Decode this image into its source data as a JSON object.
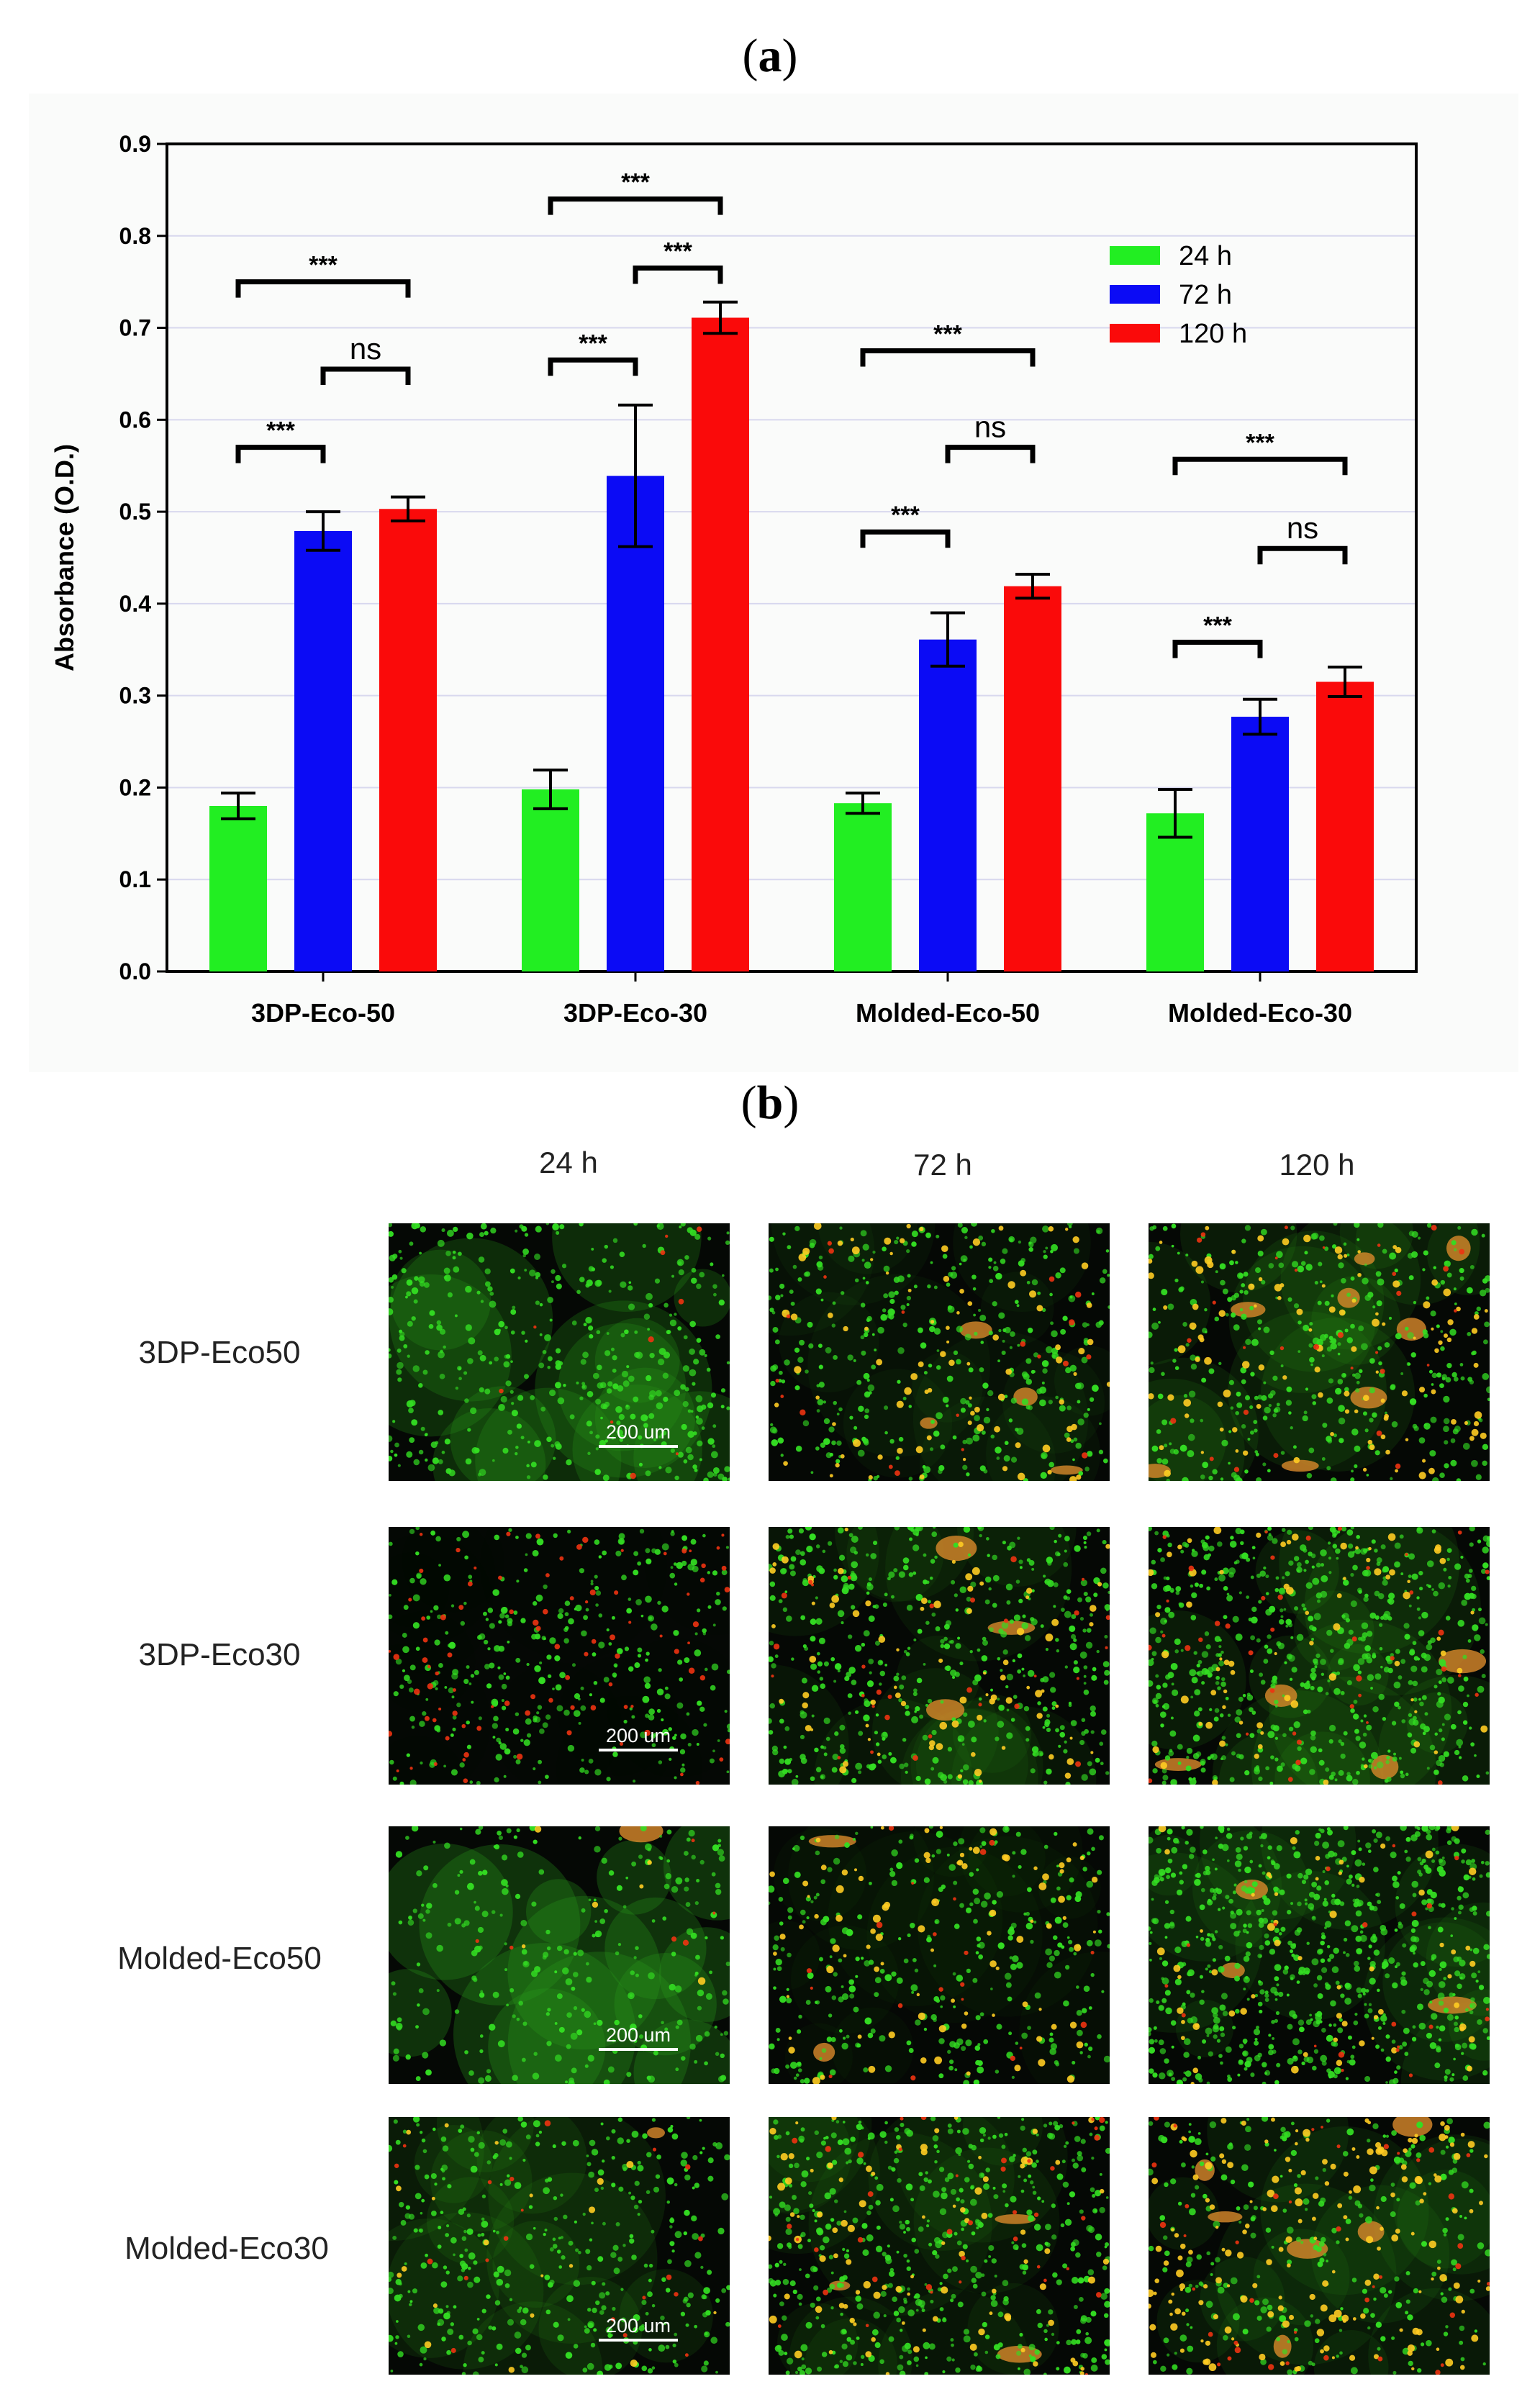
{
  "panel_labels": {
    "a": "a",
    "b": "b"
  },
  "chart_data": {
    "type": "bar",
    "title": "",
    "xlabel": "",
    "ylabel": "Absorbance (O.D.)",
    "ylim": [
      0,
      0.9
    ],
    "yticks": [
      "0.0",
      "0.1",
      "0.2",
      "0.3",
      "0.4",
      "0.5",
      "0.6",
      "0.7",
      "0.8",
      "0.9"
    ],
    "grid": true,
    "legend_position": "top-right",
    "categories": [
      "3DP-Eco-50",
      "3DP-Eco-30",
      "Molded-Eco-50",
      "Molded-Eco-30"
    ],
    "series": [
      {
        "name": "24 h",
        "color": "#22ee22",
        "values": [
          0.18,
          0.198,
          0.183,
          0.172
        ],
        "errors": [
          0.014,
          0.021,
          0.011,
          0.026
        ]
      },
      {
        "name": "72 h",
        "color": "#0b0bf5",
        "values": [
          0.479,
          0.539,
          0.361,
          0.277
        ],
        "errors": [
          0.021,
          0.077,
          0.029,
          0.019
        ]
      },
      {
        "name": "120 h",
        "color": "#fa0a0a",
        "values": [
          0.503,
          0.711,
          0.419,
          0.315
        ],
        "errors": [
          0.013,
          0.017,
          0.013,
          0.016
        ]
      }
    ],
    "significance": [
      {
        "group": 0,
        "from": 0,
        "to": 1,
        "y": 0.57,
        "label": "***"
      },
      {
        "group": 0,
        "from": 1,
        "to": 2,
        "y": 0.655,
        "label": "ns"
      },
      {
        "group": 0,
        "from": 0,
        "to": 2,
        "y": 0.75,
        "label": "***"
      },
      {
        "group": 1,
        "from": 0,
        "to": 1,
        "y": 0.665,
        "label": "***"
      },
      {
        "group": 1,
        "from": 1,
        "to": 2,
        "y": 0.765,
        "label": "***"
      },
      {
        "group": 1,
        "from": 0,
        "to": 2,
        "y": 0.84,
        "label": "***"
      },
      {
        "group": 2,
        "from": 0,
        "to": 1,
        "y": 0.478,
        "label": "***"
      },
      {
        "group": 2,
        "from": 1,
        "to": 2,
        "y": 0.57,
        "label": "ns"
      },
      {
        "group": 2,
        "from": 0,
        "to": 2,
        "y": 0.675,
        "label": "***"
      },
      {
        "group": 3,
        "from": 0,
        "to": 1,
        "y": 0.358,
        "label": "***"
      },
      {
        "group": 3,
        "from": 1,
        "to": 2,
        "y": 0.46,
        "label": "ns"
      },
      {
        "group": 3,
        "from": 0,
        "to": 2,
        "y": 0.557,
        "label": "***"
      }
    ]
  },
  "micrographs": {
    "columns": [
      "24 h",
      "72 h",
      "120 h"
    ],
    "rows": [
      "3DP-Eco50",
      "3DP-Eco30",
      "Molded-Eco50",
      "Molded-Eco30"
    ],
    "scale_bar": "200 um",
    "colors": {
      "live": "#33dd22",
      "dead": "#ee3311",
      "mixed": "#ffcc22",
      "background": "#050805"
    }
  }
}
